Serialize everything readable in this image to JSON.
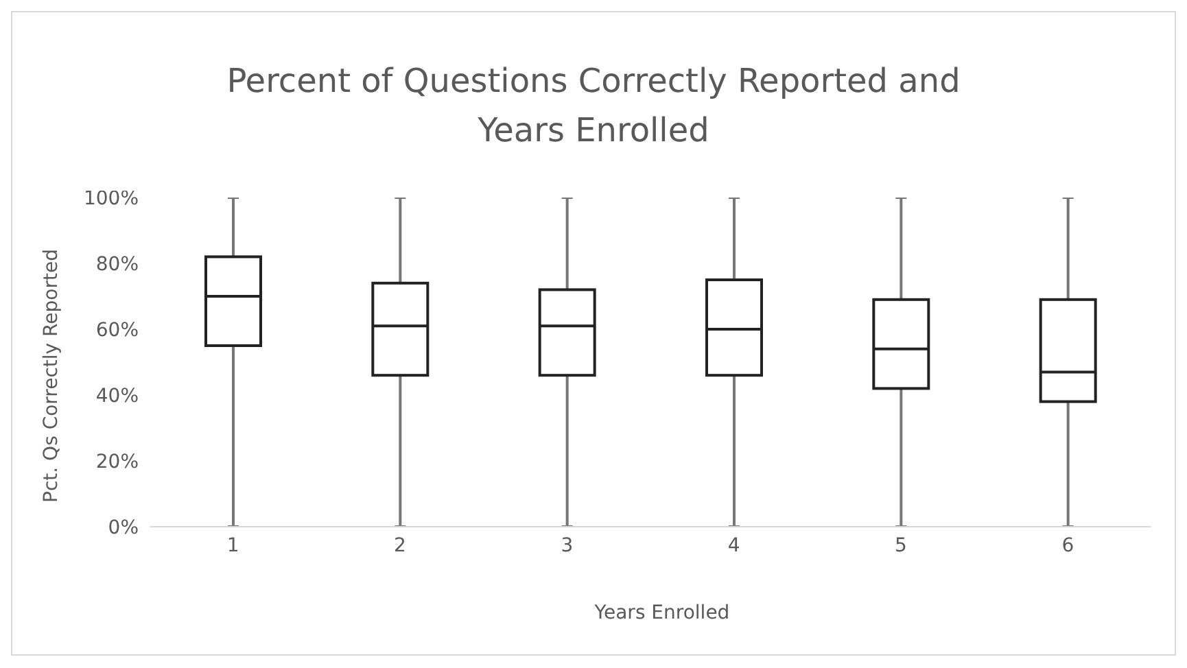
{
  "chart_data": {
    "type": "box",
    "title": "Percent of Questions Correctly Reported and Years Enrolled",
    "xlabel": "Years Enrolled",
    "ylabel": "Pct. Qs Correctly Reported",
    "categories": [
      "1",
      "2",
      "3",
      "4",
      "5",
      "6"
    ],
    "boxes": [
      {
        "low": 0,
        "q1": 55,
        "median": 70,
        "q3": 82,
        "high": 100
      },
      {
        "low": 0,
        "q1": 46,
        "median": 61,
        "q3": 74,
        "high": 100
      },
      {
        "low": 0,
        "q1": 46,
        "median": 61,
        "q3": 72,
        "high": 100
      },
      {
        "low": 0,
        "q1": 46,
        "median": 60,
        "q3": 75,
        "high": 100
      },
      {
        "low": 0,
        "q1": 42,
        "median": 54,
        "q3": 69,
        "high": 100
      },
      {
        "low": 0,
        "q1": 38,
        "median": 47,
        "q3": 69,
        "high": 100
      }
    ],
    "ylim": [
      0,
      100
    ],
    "yticks": [
      {
        "value": 0,
        "label": "0%"
      },
      {
        "value": 20,
        "label": "20%"
      },
      {
        "value": 40,
        "label": "40%"
      },
      {
        "value": 60,
        "label": "60%"
      },
      {
        "value": 80,
        "label": "80%"
      },
      {
        "value": 100,
        "label": "100%"
      }
    ],
    "grid": false,
    "legend": false
  }
}
